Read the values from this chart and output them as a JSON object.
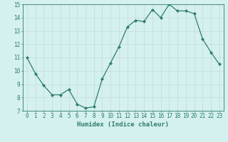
{
  "x": [
    0,
    1,
    2,
    3,
    4,
    5,
    6,
    7,
    8,
    9,
    10,
    11,
    12,
    13,
    14,
    15,
    16,
    17,
    18,
    19,
    20,
    21,
    22,
    23
  ],
  "y": [
    11.0,
    9.8,
    8.9,
    8.2,
    8.2,
    8.6,
    7.5,
    7.2,
    7.3,
    9.4,
    10.6,
    11.8,
    13.3,
    13.8,
    13.7,
    14.6,
    14.0,
    15.0,
    14.5,
    14.5,
    14.3,
    12.4,
    11.4,
    10.5
  ],
  "line_color": "#2e7d6e",
  "marker": "D",
  "marker_size": 2,
  "bg_color": "#d4f0ef",
  "grid_color": "#c8dede",
  "xlabel": "Humidex (Indice chaleur)",
  "xlim": [
    -0.5,
    23.5
  ],
  "ylim": [
    7,
    15
  ],
  "yticks": [
    7,
    8,
    9,
    10,
    11,
    12,
    13,
    14,
    15
  ],
  "xticks": [
    0,
    1,
    2,
    3,
    4,
    5,
    6,
    7,
    8,
    9,
    10,
    11,
    12,
    13,
    14,
    15,
    16,
    17,
    18,
    19,
    20,
    21,
    22,
    23
  ],
  "tick_color": "#2e7d6e",
  "label_fontsize": 6.5,
  "tick_fontsize": 5.5
}
